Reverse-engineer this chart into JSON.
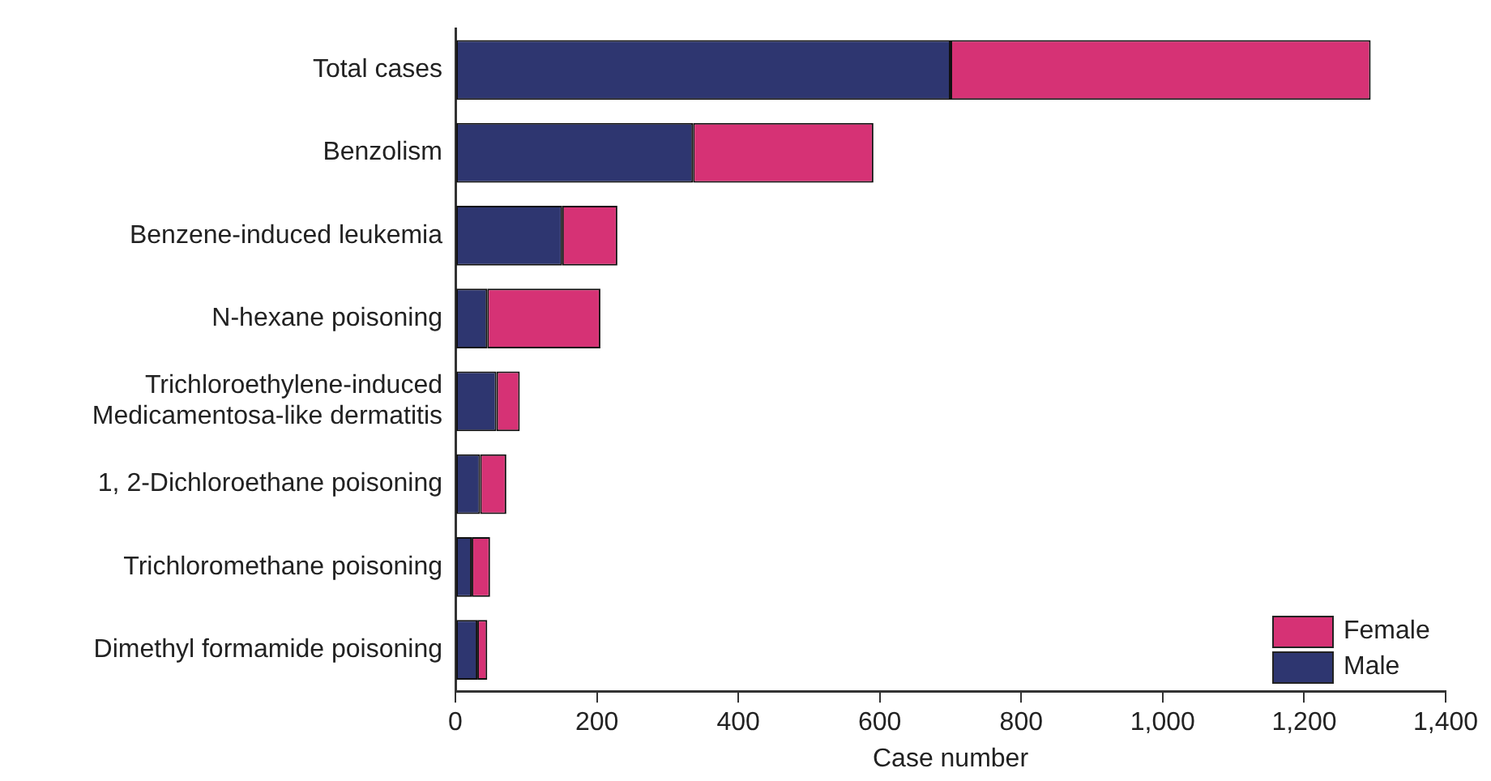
{
  "chart_data": {
    "type": "bar",
    "orientation": "horizontal",
    "stacked": true,
    "categories": [
      "Total cases",
      "Benzolism",
      "Benzene-induced leukemia",
      "N-hexane poisoning",
      "Trichloroethylene-induced\nMedicamentosa-like dermatitis",
      "1, 2-Dichloroethane poisoning",
      "Trichloromethane poisoning",
      "Dimethyl formamide poisoning"
    ],
    "series": [
      {
        "name": "Male",
        "color": "#2e3670",
        "values": [
          700,
          336,
          151,
          45,
          58,
          35,
          23,
          31
        ]
      },
      {
        "name": "Female",
        "color": "#d63275",
        "values": [
          594,
          255,
          78,
          160,
          33,
          37,
          26,
          14
        ]
      }
    ],
    "xlabel": "Case number",
    "xlim": [
      0,
      1400
    ],
    "xticks": [
      0,
      200,
      400,
      600,
      800,
      {
        "value": 1000,
        "label": "1,000"
      },
      {
        "value": 1200,
        "label": "1,200"
      },
      {
        "value": 1400,
        "label": "1,400"
      }
    ],
    "grid": false,
    "legend": "bottom right"
  }
}
